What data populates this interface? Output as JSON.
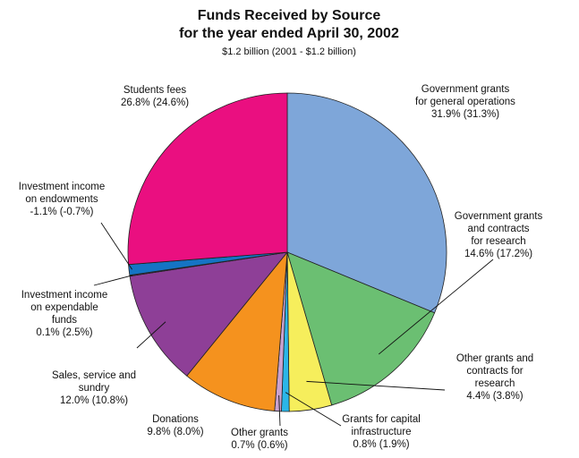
{
  "chart_data": {
    "type": "pie",
    "title": [
      "Funds Received by Source",
      "for the year ended April 30, 2002"
    ],
    "subtitle": "$1.2 billion (2001 - $1.2 billion)",
    "slices": [
      {
        "label": [
          "Government grants",
          "for general operations"
        ],
        "value_label": "31.9% (31.3%)",
        "value": 31.9,
        "prior": 31.3,
        "color": "#7ea6d9"
      },
      {
        "label": [
          "Government grants",
          "and contracts",
          "for research"
        ],
        "value_label": "14.6% (17.2%)",
        "value": 14.6,
        "prior": 17.2,
        "color": "#6bbf72"
      },
      {
        "label": [
          "Other grants and",
          "contracts for",
          "research"
        ],
        "value_label": "4.4% (3.8%)",
        "value": 4.4,
        "prior": 3.8,
        "color": "#f6ee5c"
      },
      {
        "label": [
          "Grants for capital",
          "infrastructure"
        ],
        "value_label": "0.8% (1.9%)",
        "value": 0.8,
        "prior": 1.9,
        "color": "#2bb6e8"
      },
      {
        "label": [
          "Other grants"
        ],
        "value_label": "0.7% (0.6%)",
        "value": 0.7,
        "prior": 0.6,
        "color": "#c9a2cf"
      },
      {
        "label": [
          "Donations"
        ],
        "value_label": "9.8% (8.0%)",
        "value": 9.8,
        "prior": 8.0,
        "color": "#f5921e"
      },
      {
        "label": [
          "Sales, service and",
          "sundry"
        ],
        "value_label": "12.0% (10.8%)",
        "value": 12.0,
        "prior": 10.8,
        "color": "#8e3f97"
      },
      {
        "label": [
          "Investment income",
          "on expendable",
          "funds"
        ],
        "value_label": "0.1% (2.5%)",
        "value": 0.1,
        "prior": 2.5,
        "color": "#5a3a6a"
      },
      {
        "label": [
          "Investment income",
          "on endowments"
        ],
        "value_label": "-1.1% (-0.7%)",
        "value": -1.1,
        "prior": -0.7,
        "color": "#1574c4"
      },
      {
        "label": [
          "Students fees"
        ],
        "value_label": "26.8% (24.6%)",
        "value": 26.8,
        "prior": 24.6,
        "color": "#ea0f80"
      }
    ]
  }
}
